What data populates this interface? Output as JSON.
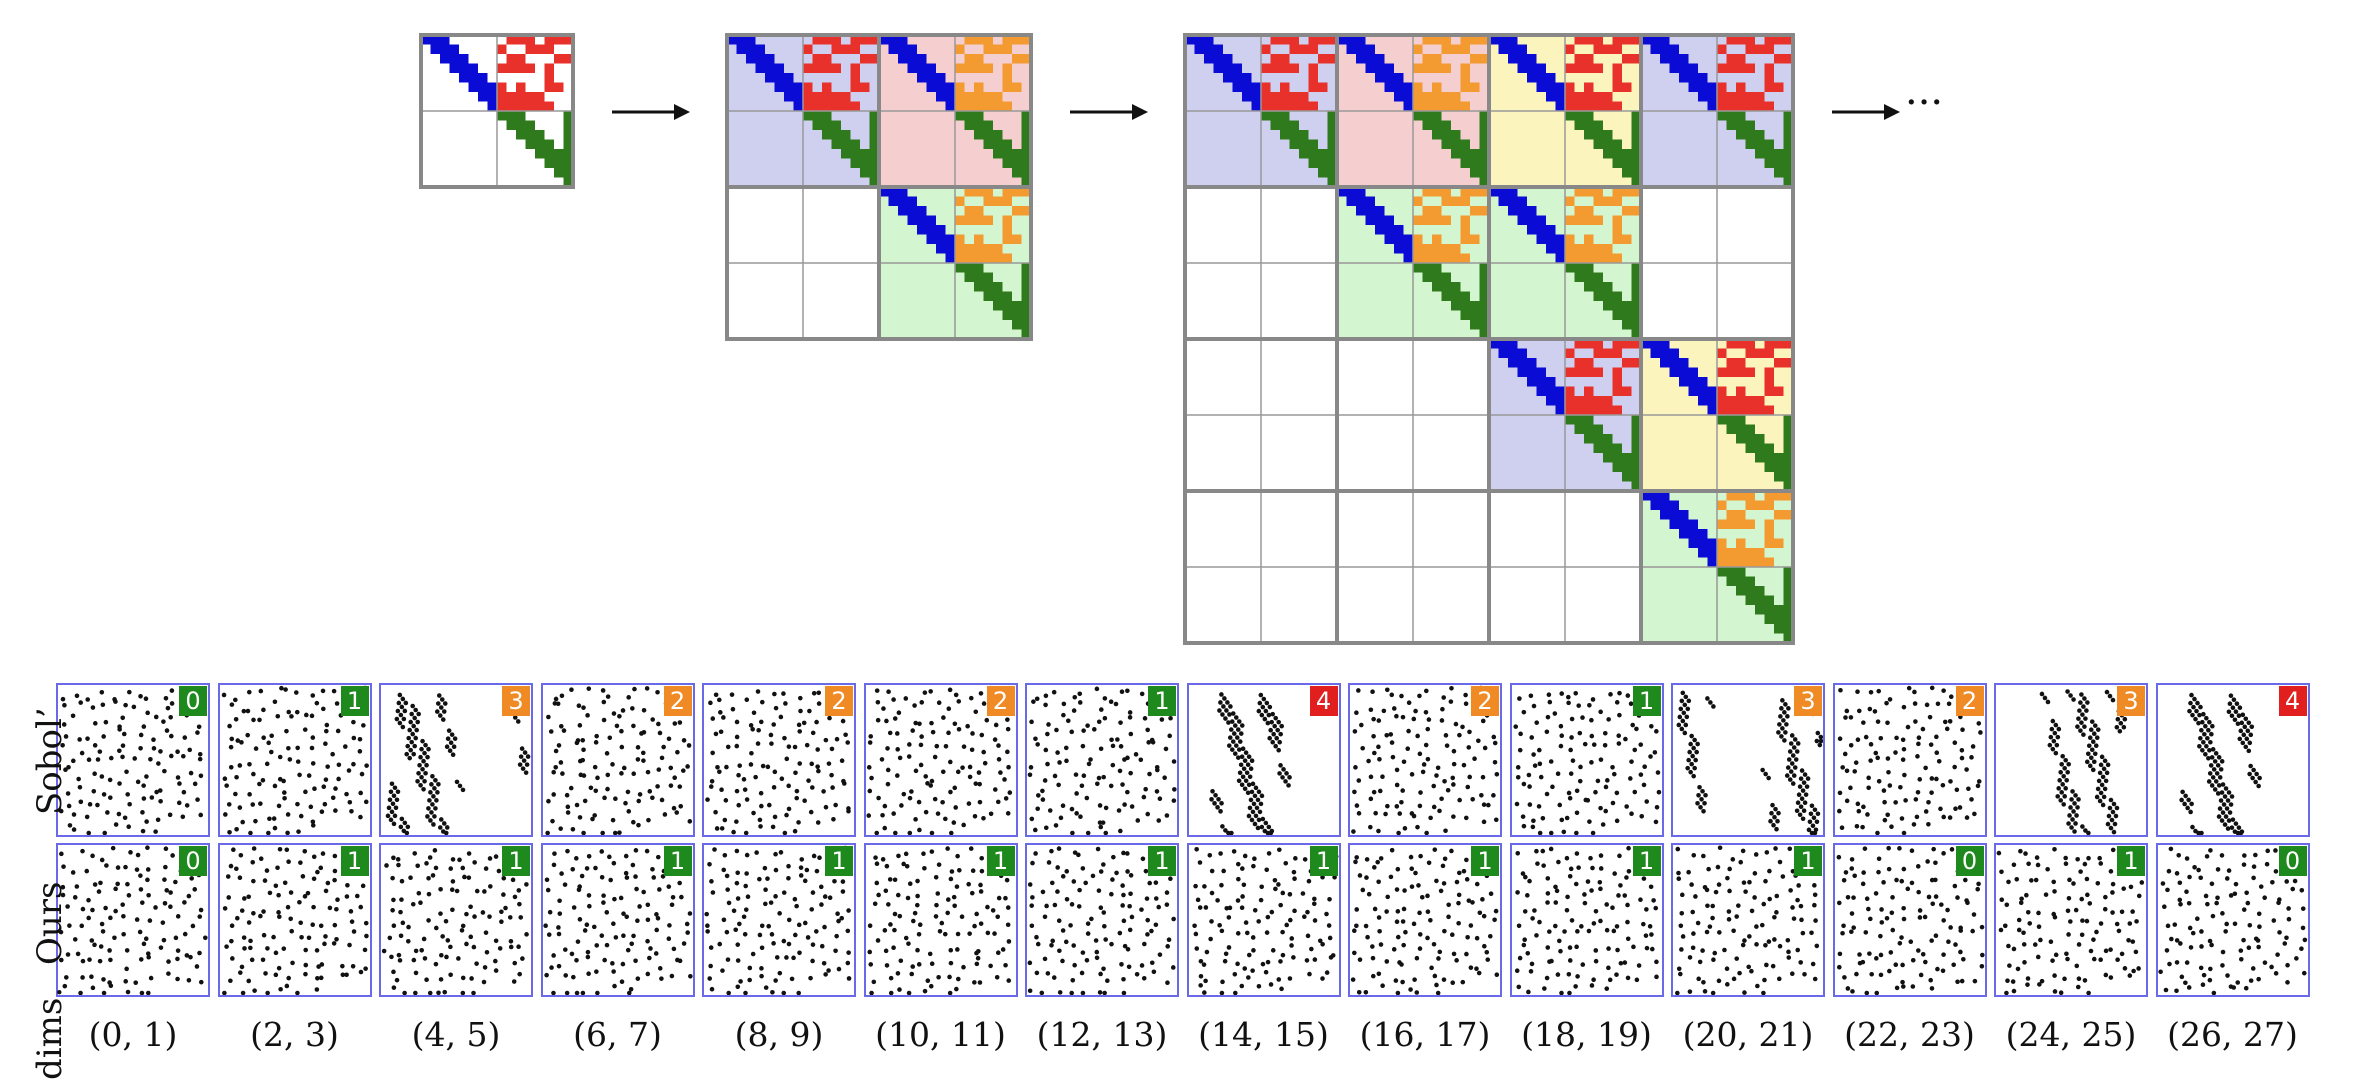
{
  "colors": {
    "blue": "#0b0bd6",
    "red": "#e8312a",
    "orange": "#f39a30",
    "green": "#2f7a1c",
    "bg_lavender": "#cfcff0",
    "bg_pink": "#f5cfcf",
    "bg_yellow": "#fbf5bd",
    "bg_lightgreen": "#d3f5cf",
    "grid_outline": "#888888",
    "panel_border": "#6a6ae8",
    "badge_green": "#1e8a1e",
    "badge_orange": "#f08a24",
    "badge_red": "#e11f1f"
  },
  "ellipsis": "···",
  "row_labels": {
    "sobol": "Sobol’",
    "ours": "Ours",
    "dims": "dims."
  },
  "columns": [
    {
      "label": "(0, 1)",
      "sobol_badge": "0",
      "ours_badge": "0"
    },
    {
      "label": "(2, 3)",
      "sobol_badge": "1",
      "ours_badge": "1"
    },
    {
      "label": "(4, 5)",
      "sobol_badge": "3",
      "ours_badge": "1"
    },
    {
      "label": "(6, 7)",
      "sobol_badge": "2",
      "ours_badge": "1"
    },
    {
      "label": "(8, 9)",
      "sobol_badge": "2",
      "ours_badge": "1"
    },
    {
      "label": "(10, 11)",
      "sobol_badge": "2",
      "ours_badge": "1"
    },
    {
      "label": "(12, 13)",
      "sobol_badge": "1",
      "ours_badge": "1"
    },
    {
      "label": "(14, 15)",
      "sobol_badge": "4",
      "ours_badge": "1"
    },
    {
      "label": "(16, 17)",
      "sobol_badge": "2",
      "ours_badge": "1"
    },
    {
      "label": "(18, 19)",
      "sobol_badge": "1",
      "ours_badge": "1"
    },
    {
      "label": "(20, 21)",
      "sobol_badge": "3",
      "ours_badge": "1"
    },
    {
      "label": "(22, 23)",
      "sobol_badge": "2",
      "ours_badge": "0"
    },
    {
      "label": "(24, 25)",
      "sobol_badge": "3",
      "ours_badge": "1"
    },
    {
      "label": "(26, 27)",
      "sobol_badge": "4",
      "ours_badge": "0"
    }
  ]
}
